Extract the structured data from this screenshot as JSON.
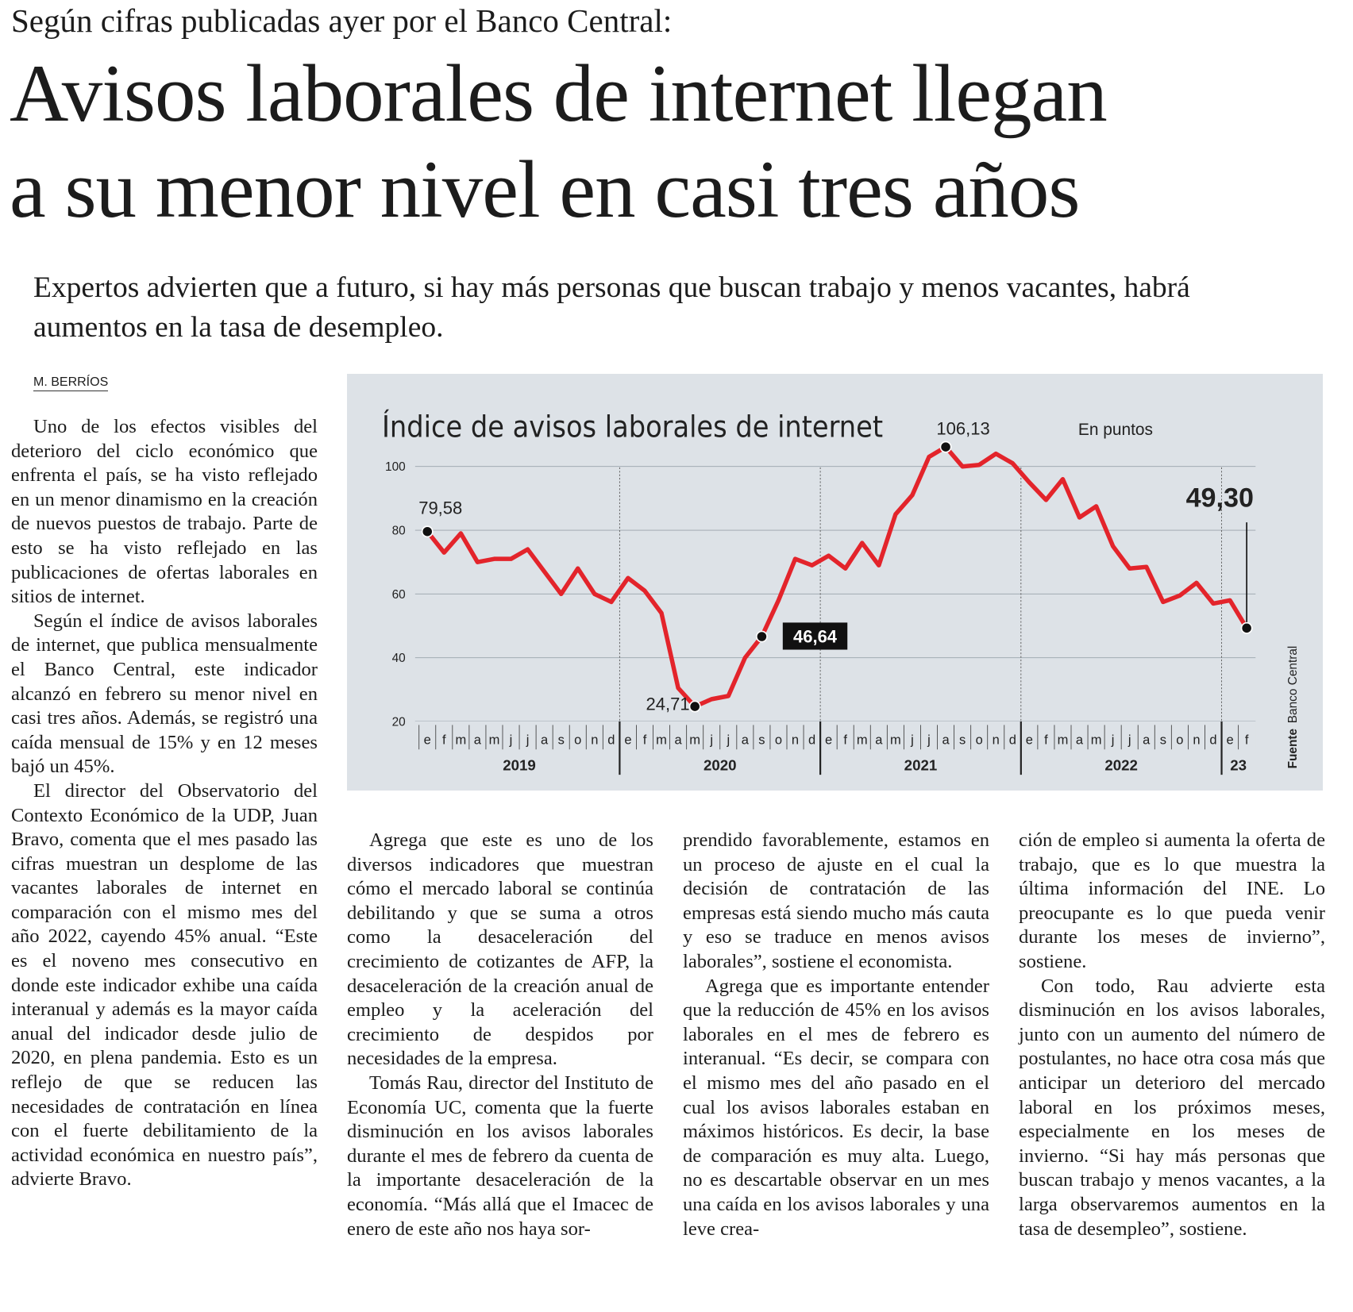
{
  "header": {
    "kicker": "Según cifras publicadas ayer por el Banco Central:",
    "title": [
      "Avisos laborales de internet llegan",
      "a su menor nivel en casi tres años"
    ],
    "subtitle": "Expertos advierten que a futuro, si hay más personas que buscan trabajo y menos vacantes, habrá aumentos en la tasa de desempleo.",
    "byline": "M. BERRÍOS"
  },
  "columns": [
    [
      "Uno de los efectos visibles del deterioro del ciclo económico que enfrenta el país, se ha visto reflejado en un menor dinamismo en la creación de nuevos puestos de trabajo. Parte de esto se ha visto reflejado en las publicaciones de ofertas laborales en sitios de internet.",
      "Según el índice de avisos laborales de internet, que publica mensualmente el Banco Central, este indicador alcanzó en febrero su menor nivel en casi tres años. Además, se registró una caída mensual de 15% y en 12 meses bajó un 45%.",
      "El director del Observatorio del Contexto Económico de la UDP, Juan Bravo, comenta que el mes pasado las cifras muestran un desplome de las vacantes laborales de internet en comparación con el mismo mes del año 2022, cayendo 45% anual. “Este es el noveno mes consecutivo en donde este indicador exhibe una caída interanual y además es la mayor caída anual del indicador desde julio de 2020, en plena pandemia. Esto es un reflejo de que se reducen las necesidades de contratación en línea con el fuerte debilitamiento de la actividad económica en nuestro país”, advierte Bravo."
    ],
    [
      "Agrega que este es uno de los diversos indicadores que muestran cómo el mercado laboral se continúa debilitando y que se suma a otros como la desaceleración del crecimiento de cotizantes de AFP, la desaceleración de la creación anual de empleo y la aceleración del crecimiento de despidos por necesidades de la empresa.",
      "Tomás Rau, director del Instituto de Economía UC, comenta que la fuerte disminución en los avisos laborales durante el mes de febrero da cuenta de la importante desaceleración de la economía. “Más allá que el Imacec de enero de este año nos haya sor-"
    ],
    [
      "prendido favorablemente, estamos en un proceso de ajuste en el cual la decisión de contratación de las empresas está siendo mucho más cauta y eso se traduce en menos avisos laborales”, sostiene el economista.",
      "Agrega que es importante entender que la reducción de 45% en los avisos laborales en el mes de febrero es interanual. “Es decir, se compara con el mismo mes del año pasado en el cual los avisos laborales estaban en máximos históricos. Es decir, la base de comparación es muy alta. Luego, no es descartable observar en un mes una caída en los avisos laborales y una leve crea-"
    ],
    [
      "ción de empleo si aumenta la oferta de trabajo, que es lo que muestra la última información del INE. Lo preocupante es lo que pueda venir durante los meses de invierno”, sostiene.",
      "Con todo, Rau advierte esta disminución en los avisos laborales, junto con un aumento del número de postulantes, no hace otra cosa más que anticipar un deterioro del mercado laboral en los próximos meses, especialmente en los meses de invierno. “Si hay más personas que buscan trabajo y menos vacantes, a la larga observaremos aumentos en la tasa de desempleo”, sostiene."
    ]
  ],
  "chart_data": {
    "type": "line",
    "title": "Índice de avisos laborales de internet",
    "subtitle": "En puntos",
    "source_label": "Fuente",
    "source": "Banco Central",
    "categories": [
      "e",
      "f",
      "m",
      "a",
      "m",
      "j",
      "j",
      "a",
      "s",
      "o",
      "n",
      "d",
      "e",
      "f",
      "m",
      "a",
      "m",
      "j",
      "j",
      "a",
      "s",
      "o",
      "n",
      "d",
      "e",
      "f",
      "m",
      "a",
      "m",
      "j",
      "j",
      "a",
      "s",
      "o",
      "n",
      "d",
      "e",
      "f",
      "m",
      "a",
      "m",
      "j",
      "j",
      "a",
      "s",
      "o",
      "n",
      "d",
      "e",
      "f"
    ],
    "years": [
      "2019",
      "2020",
      "2021",
      "2022",
      "23"
    ],
    "values": [
      79.58,
      73,
      79,
      70,
      71,
      71,
      74,
      67,
      60,
      68,
      60,
      57.5,
      65,
      61,
      54,
      30.5,
      24.71,
      27,
      28,
      40,
      46.64,
      58,
      71,
      69,
      72,
      68,
      76,
      69,
      85,
      91,
      103,
      106.13,
      100,
      100.5,
      104,
      101,
      95,
      89.5,
      96,
      84,
      87.5,
      75,
      68,
      68.5,
      57.5,
      59.5,
      63.5,
      57,
      58,
      49.3
    ],
    "value_labels": [
      "79,58",
      null,
      null,
      null,
      null,
      null,
      null,
      null,
      null,
      null,
      null,
      null,
      null,
      null,
      null,
      null,
      "24,71",
      null,
      null,
      null,
      "46,64",
      null,
      null,
      null,
      null,
      null,
      null,
      null,
      null,
      null,
      null,
      "106,13",
      null,
      null,
      null,
      null,
      null,
      null,
      null,
      null,
      null,
      null,
      null,
      null,
      null,
      null,
      null,
      null,
      null,
      "49,30"
    ],
    "color": "#e3242b",
    "ylim": [
      20,
      110
    ],
    "yticks": [
      20,
      40,
      60,
      80,
      100
    ],
    "grid": true
  }
}
